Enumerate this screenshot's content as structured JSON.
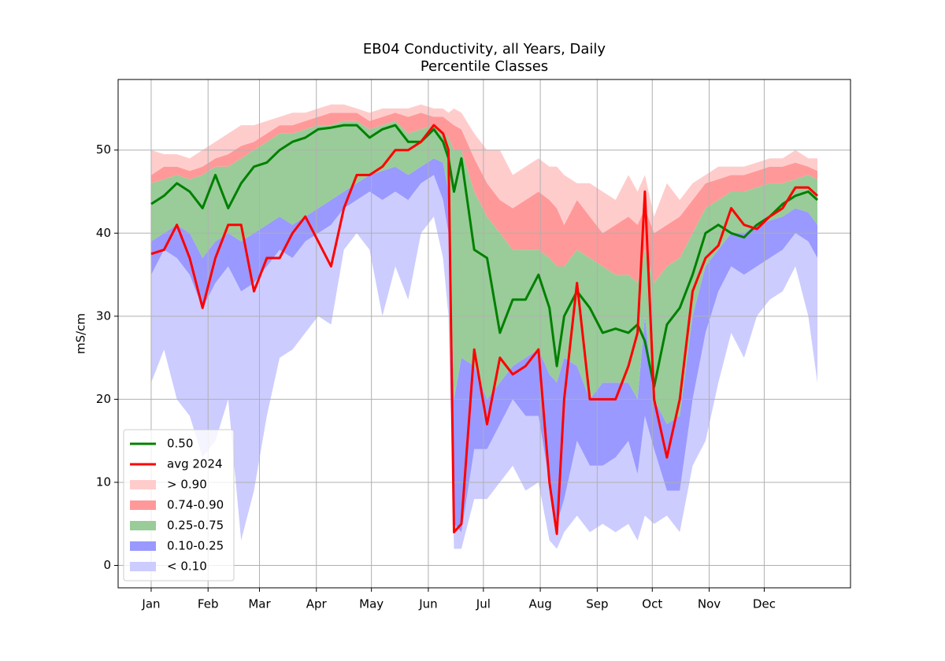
{
  "chart_data": {
    "type": "line",
    "title": "EB04 Conductivity, all Years, Daily",
    "subtitle": "Percentile Classes",
    "y_label": "mS/cm",
    "grid": true,
    "legend": "lower left",
    "xlim": [
      -17,
      382
    ],
    "ylim": [
      -2.7,
      58.5
    ],
    "xticks": [
      {
        "value": 1,
        "label": "Jan"
      },
      {
        "value": 32,
        "label": "Feb"
      },
      {
        "value": 60,
        "label": "Mar"
      },
      {
        "value": 91,
        "label": "Apr"
      },
      {
        "value": 121,
        "label": "May"
      },
      {
        "value": 152,
        "label": "Jun"
      },
      {
        "value": 182,
        "label": "Jul"
      },
      {
        "value": 213,
        "label": "Aug"
      },
      {
        "value": 244,
        "label": "Sep"
      },
      {
        "value": 274,
        "label": "Oct"
      },
      {
        "value": 305,
        "label": "Nov"
      },
      {
        "value": 335,
        "label": "Dec"
      }
    ],
    "yticks": [
      0,
      10,
      20,
      30,
      40,
      50
    ],
    "x": [
      1,
      8,
      15,
      22,
      29,
      36,
      43,
      50,
      57,
      64,
      71,
      78,
      85,
      92,
      99,
      106,
      113,
      120,
      127,
      134,
      141,
      148,
      155,
      160,
      163,
      166,
      170,
      177,
      184,
      191,
      198,
      205,
      212,
      218,
      222,
      226,
      233,
      240,
      247,
      254,
      261,
      266,
      270,
      275,
      282,
      289,
      296,
      303,
      310,
      317,
      324,
      331,
      338,
      345,
      352,
      359,
      364
    ],
    "series": [
      {
        "name": "0.50",
        "color": "#008000",
        "values": [
          43.5,
          44.5,
          46,
          45,
          43,
          47,
          43,
          46,
          48,
          48.5,
          50,
          51,
          51.5,
          52.5,
          52.7,
          53,
          53,
          51.5,
          52.5,
          53,
          51,
          51,
          52.5,
          51,
          49,
          45,
          49,
          38,
          37,
          28,
          32,
          32,
          35,
          31,
          24,
          30,
          33,
          31,
          28,
          28.5,
          28,
          29,
          27,
          21.5,
          29,
          31,
          35,
          40,
          41,
          40,
          39.5,
          41,
          42,
          43.5,
          44.5,
          45,
          44
        ]
      },
      {
        "name": "avg 2024",
        "color": "#ff0000",
        "values": [
          37.5,
          38,
          41,
          37,
          31,
          37,
          41,
          41,
          33,
          37,
          37,
          40,
          42,
          39,
          36,
          43,
          47,
          47,
          48,
          50,
          50,
          51,
          53,
          52,
          50,
          4,
          5,
          26,
          17,
          25,
          23,
          24,
          26,
          10,
          3.8,
          20,
          34,
          20,
          20,
          20,
          24,
          28,
          45,
          20,
          13,
          20,
          33,
          37,
          38.5,
          43,
          41,
          40.5,
          42,
          43,
          45.5,
          45.5,
          44.5
        ]
      }
    ],
    "bands": [
      {
        "name": "> 0.90",
        "color": "#ffcccc",
        "lower": [
          47,
          48,
          48,
          47.5,
          48,
          49,
          49.5,
          50.5,
          51,
          52,
          53,
          53,
          53.5,
          54,
          54.5,
          54.5,
          54.5,
          53.5,
          54,
          54.5,
          54,
          54.5,
          54,
          54,
          53.5,
          53,
          52.5,
          49,
          46,
          44,
          43,
          44,
          45,
          44,
          43,
          41,
          44,
          42,
          40,
          41,
          42,
          41,
          43,
          40,
          41,
          42,
          44,
          46,
          46.5,
          47,
          47,
          47.5,
          48,
          48,
          48.5,
          48,
          47.5
        ],
        "upper": [
          50,
          49.5,
          49.5,
          49,
          50,
          51,
          52,
          53,
          53,
          53.5,
          54,
          54.5,
          54.5,
          55,
          55.5,
          55.5,
          55,
          54.5,
          55,
          55,
          55,
          55.5,
          55,
          55,
          54.5,
          55,
          54.5,
          52,
          50,
          50,
          47,
          48,
          49,
          48,
          48,
          47,
          46,
          46,
          45,
          44,
          47,
          45,
          47,
          42,
          46,
          44,
          46,
          47,
          48,
          48,
          48,
          48.5,
          49,
          49,
          50,
          49,
          49
        ]
      },
      {
        "name": "0.74-0.90",
        "color": "#ff9999",
        "lower": [
          46,
          46.5,
          47,
          46.5,
          47,
          48,
          48,
          49,
          50,
          51,
          52,
          52,
          52.5,
          53,
          53,
          53.5,
          53.5,
          52.5,
          53,
          53.5,
          52,
          52.5,
          53,
          52,
          51.5,
          50,
          50,
          45,
          42,
          40,
          38,
          38,
          38,
          37,
          36,
          36,
          38,
          37,
          36,
          35,
          35,
          34,
          38,
          34,
          36,
          37,
          40,
          43,
          44,
          45,
          45,
          45.5,
          46,
          46,
          46.5,
          47,
          46.5
        ],
        "upper": [
          47,
          48,
          48,
          47.5,
          48,
          49,
          49.5,
          50.5,
          51,
          52,
          53,
          53,
          53.5,
          54,
          54.5,
          54.5,
          54.5,
          53.5,
          54,
          54.5,
          54,
          54.5,
          54,
          54,
          53.5,
          53,
          52.5,
          49,
          46,
          44,
          43,
          44,
          45,
          44,
          43,
          41,
          44,
          42,
          40,
          41,
          42,
          41,
          43,
          40,
          41,
          42,
          44,
          46,
          46.5,
          47,
          47,
          47.5,
          48,
          48,
          48.5,
          48,
          47.5
        ]
      },
      {
        "name": "0.25-0.75",
        "color": "#99cc99",
        "lower": [
          39,
          40,
          41,
          40,
          37,
          39,
          40,
          39,
          40,
          41,
          42,
          41,
          42,
          43,
          44,
          45,
          46,
          47,
          47.5,
          48,
          47,
          48,
          49,
          48.5,
          45,
          20,
          25,
          24,
          20,
          22,
          24,
          25,
          26,
          23,
          22,
          25,
          24,
          20,
          22,
          22,
          22,
          20,
          30,
          20,
          17,
          18,
          30,
          36,
          38,
          40,
          40,
          41,
          41.5,
          42,
          43,
          42.5,
          41
        ],
        "upper": [
          46,
          46.5,
          47,
          46.5,
          47,
          48,
          48,
          49,
          50,
          51,
          52,
          52,
          52.5,
          53,
          53,
          53.5,
          53.5,
          52.5,
          53,
          53.5,
          52,
          52.5,
          53,
          52,
          51.5,
          50,
          50,
          45,
          42,
          40,
          38,
          38,
          38,
          37,
          36,
          36,
          38,
          37,
          36,
          35,
          35,
          34,
          38,
          34,
          36,
          37,
          40,
          43,
          44,
          45,
          45,
          45.5,
          46,
          46,
          46.5,
          47,
          46.5
        ]
      },
      {
        "name": "0.10-0.25",
        "color": "#9999ff",
        "lower": [
          35,
          38,
          37,
          35,
          31,
          34,
          36,
          33,
          34,
          36,
          38,
          37,
          39,
          40,
          41,
          43,
          44,
          45,
          44,
          45,
          44,
          46,
          47,
          44,
          40,
          5,
          4,
          14,
          14,
          17,
          20,
          18,
          18,
          10,
          5,
          8,
          15,
          12,
          12,
          13,
          15,
          11,
          18,
          14,
          9,
          9,
          20,
          28,
          33,
          36,
          35,
          36,
          37,
          38,
          40,
          39,
          37
        ],
        "upper": [
          39,
          40,
          41,
          40,
          37,
          39,
          40,
          39,
          40,
          41,
          42,
          41,
          42,
          43,
          44,
          45,
          46,
          47,
          47.5,
          48,
          47,
          48,
          49,
          48.5,
          45,
          20,
          25,
          24,
          20,
          22,
          24,
          25,
          26,
          23,
          22,
          25,
          24,
          20,
          22,
          22,
          22,
          20,
          30,
          20,
          17,
          18,
          30,
          36,
          38,
          40,
          40,
          41,
          41.5,
          42,
          43,
          42.5,
          41
        ]
      },
      {
        "name": "< 0.10",
        "color": "#ccccff",
        "lower": [
          22,
          26,
          20,
          18,
          13,
          15,
          20,
          3,
          9,
          18,
          25,
          26,
          28,
          30,
          29,
          38,
          40,
          38,
          30,
          36,
          32,
          40,
          42,
          37,
          30,
          2,
          2,
          8,
          8,
          10,
          12,
          9,
          10,
          3,
          2,
          4,
          6,
          4,
          5,
          4,
          5,
          3,
          6,
          5,
          6,
          4,
          12,
          15,
          22,
          28,
          25,
          30,
          32,
          33,
          36,
          30,
          22
        ],
        "upper": [
          35,
          38,
          37,
          35,
          31,
          34,
          36,
          33,
          34,
          36,
          38,
          37,
          39,
          40,
          41,
          43,
          44,
          45,
          44,
          45,
          44,
          46,
          47,
          44,
          40,
          5,
          4,
          14,
          14,
          17,
          20,
          18,
          18,
          10,
          5,
          8,
          15,
          12,
          12,
          13,
          15,
          11,
          18,
          14,
          9,
          9,
          20,
          28,
          33,
          36,
          35,
          36,
          37,
          38,
          40,
          39,
          37
        ]
      }
    ]
  }
}
